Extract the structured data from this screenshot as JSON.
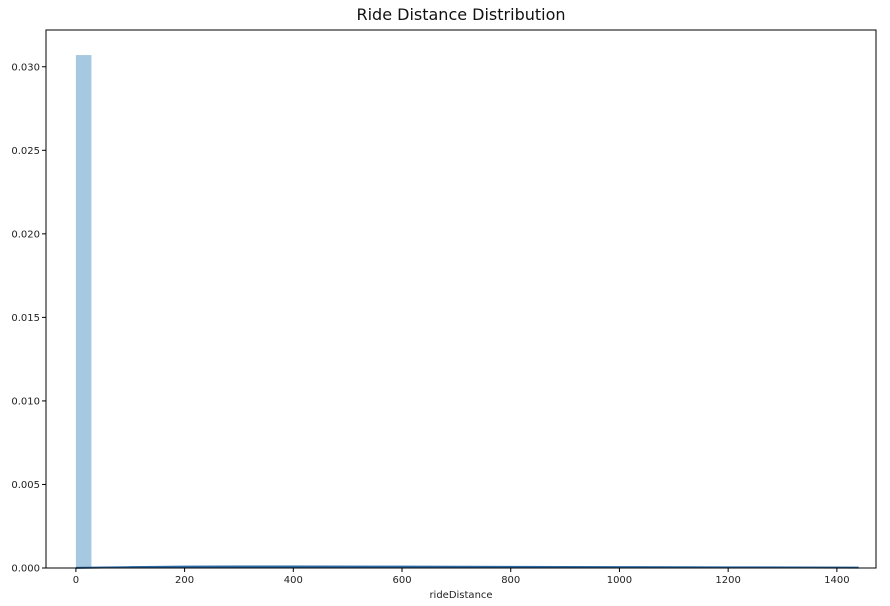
{
  "chart_data": {
    "type": "bar",
    "title": "Ride Distance Distribution",
    "xlabel": "rideDistance",
    "ylabel": "",
    "xlim": [
      -55,
      1472
    ],
    "ylim": [
      0,
      0.0322
    ],
    "x_ticks": [
      0,
      200,
      400,
      600,
      800,
      1000,
      1200,
      1400
    ],
    "y_ticks": [
      0.0,
      0.005,
      0.01,
      0.015,
      0.02,
      0.025,
      0.03
    ],
    "y_tick_labels": [
      "0.000",
      "0.005",
      "0.010",
      "0.015",
      "0.020",
      "0.025",
      "0.030"
    ],
    "grid": false,
    "histogram": {
      "bin_width": 28.6,
      "bins": [
        {
          "x0": 0,
          "x1": 28.6,
          "density": 0.0307
        }
      ]
    },
    "kde": {
      "x": [
        0,
        50,
        100,
        200,
        300,
        400,
        600,
        800,
        1000,
        1200,
        1440
      ],
      "y": [
        1e-05,
        3e-05,
        5e-05,
        8e-05,
        9e-05,
        9e-05,
        8e-05,
        7e-05,
        5e-05,
        4e-05,
        2e-05
      ]
    },
    "colors": {
      "bar": "#a6c8e1",
      "kde": "#2a6aa6",
      "axis": "#000000"
    }
  }
}
